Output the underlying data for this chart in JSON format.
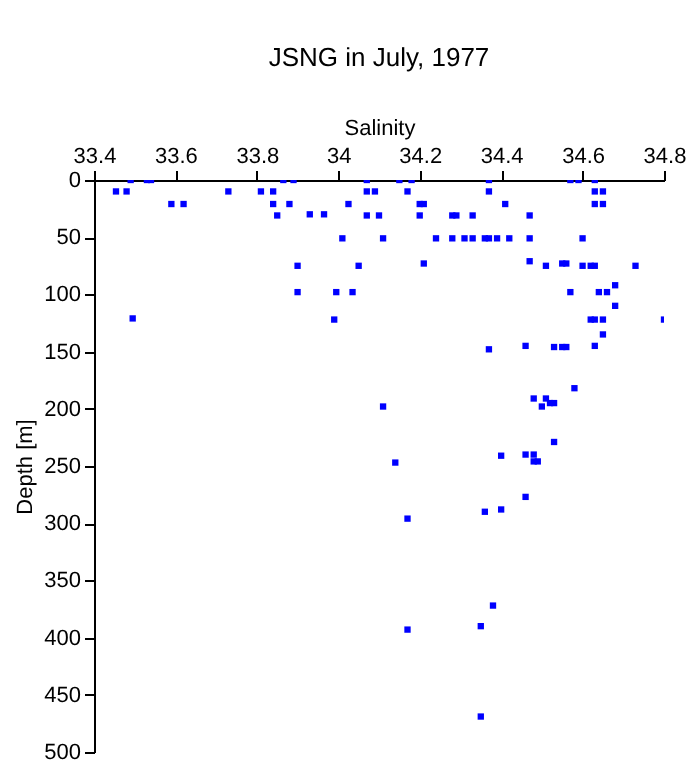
{
  "chart_data": {
    "type": "scatter",
    "title": "JSNG in July, 1977",
    "xlabel": "Salinity",
    "ylabel": "Depth [m]",
    "x": [
      33.454,
      33.48,
      33.49,
      33.53,
      33.54,
      33.59,
      33.62,
      33.495,
      33.73,
      33.81,
      33.84,
      33.84,
      33.85,
      33.865,
      33.88,
      33.89,
      33.93,
      33.965,
      33.9,
      33.9,
      33.995,
      33.99,
      34.01,
      34.025,
      34.05,
      34.035,
      34.07,
      34.07,
      34.09,
      34.07,
      34.1,
      34.15,
      34.18,
      34.37,
      34.57,
      34.59,
      34.63,
      34.17,
      34.37,
      34.63,
      34.65,
      34.2,
      34.21,
      34.41,
      34.63,
      34.65,
      34.2,
      34.28,
      34.29,
      34.33,
      34.47,
      34.11,
      34.24,
      34.28,
      34.31,
      34.33,
      34.36,
      34.37,
      34.39,
      34.42,
      34.47,
      34.6,
      34.21,
      34.47,
      34.51,
      34.55,
      34.56,
      34.6,
      34.62,
      34.63,
      34.73,
      34.68,
      34.64,
      34.66,
      34.57,
      34.68,
      34.62,
      34.63,
      34.65,
      34.8,
      34.65,
      34.37,
      34.46,
      34.53,
      34.55,
      34.56,
      34.63,
      34.58,
      34.11,
      34.48,
      34.51,
      34.52,
      34.53,
      34.5,
      34.53,
      34.4,
      34.46,
      34.48,
      34.48,
      34.49,
      34.14,
      34.46,
      34.36,
      34.4,
      34.17,
      34.38,
      34.35,
      34.17,
      34.35
    ],
    "series": [
      {
        "color": "#0000ff",
        "values": [
          10,
          10,
          0,
          0,
          0,
          21,
          21,
          121,
          10,
          10,
          10,
          21,
          31,
          0,
          21,
          0,
          30,
          30,
          75,
          98,
          98,
          122,
          51,
          21,
          75,
          98,
          0,
          10,
          10,
          31,
          31,
          0,
          0,
          0,
          0,
          0,
          0,
          10,
          10,
          10,
          10,
          21,
          21,
          21,
          21,
          21,
          31,
          31,
          31,
          31,
          31,
          51,
          51,
          51,
          51,
          51,
          51,
          51,
          51,
          51,
          51,
          51,
          73,
          71,
          75,
          73,
          73,
          75,
          75,
          75,
          75,
          92,
          98,
          98,
          98,
          110,
          122,
          122,
          122,
          122,
          135,
          148,
          145,
          146,
          146,
          146,
          145,
          182,
          198,
          191,
          191,
          195,
          195,
          198,
          229,
          241,
          240,
          240,
          246,
          246,
          247,
          277,
          290,
          288,
          296,
          372,
          390,
          393,
          469
        ]
      }
    ],
    "xlim": [
      33.4,
      34.8
    ],
    "xticks": [
      33.4,
      33.6,
      33.8,
      34,
      34.2,
      34.4,
      34.6,
      34.8
    ],
    "ylim": [
      500,
      0
    ],
    "yticks": [
      0,
      50,
      100,
      150,
      200,
      250,
      300,
      350,
      400,
      450,
      500
    ],
    "marker": "square",
    "grid": false
  }
}
